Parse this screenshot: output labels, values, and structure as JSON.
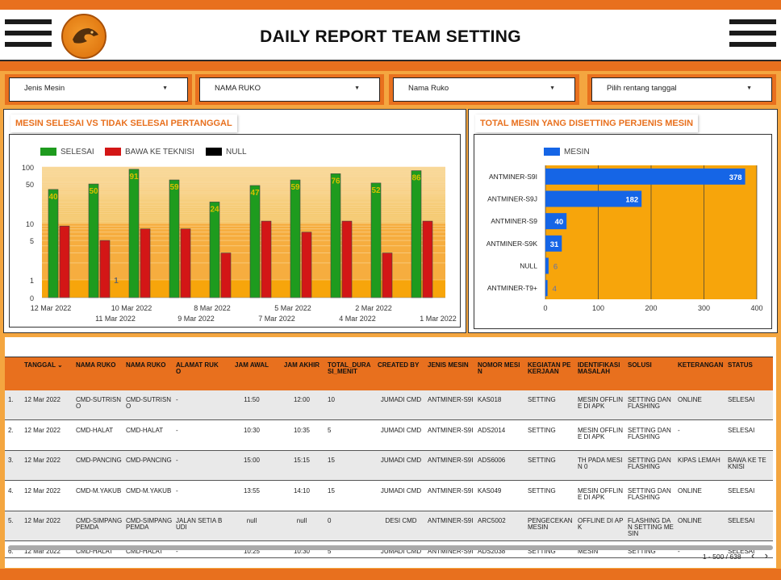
{
  "header": {
    "title": "DAILY REPORT TEAM SETTING"
  },
  "filters": [
    {
      "label": "Jenis Mesin"
    },
    {
      "label": "NAMA RUKO"
    },
    {
      "label": "Nama Ruko"
    },
    {
      "label": "Pilih rentang tanggal"
    }
  ],
  "colors": {
    "accent": "#e8701e",
    "selesai": "#1e9b1e",
    "bawa": "#d31616",
    "null": "#000000",
    "mesin": "#1565e6",
    "chart_bg": "#f7a50b"
  },
  "chart_data": [
    {
      "type": "bar",
      "title": "MESIN SELESAI VS TIDAK SELESAI PERTANGGAL",
      "scale": "log",
      "legend": "top-left",
      "ytick_labels": [
        "100",
        "50",
        "10",
        "5",
        "1",
        "0"
      ],
      "categories": [
        "12 Mar 2022",
        "11 Mar 2022",
        "10 Mar 2022",
        "9 Mar 2022",
        "8 Mar 2022",
        "7 Mar 2022",
        "5 Mar 2022",
        "4 Mar 2022",
        "2 Mar 2022",
        "1 Mar 2022"
      ],
      "series": [
        {
          "name": "SELESAI",
          "values": [
            40,
            50,
            91,
            59,
            24,
            47,
            59,
            76,
            52,
            86
          ]
        },
        {
          "name": "BAWA KE TEKNISI",
          "values": [
            9,
            5,
            8,
            8,
            3,
            11,
            7,
            11,
            3,
            11
          ]
        },
        {
          "name": "NULL",
          "values": [
            0,
            1,
            0,
            0,
            0,
            0,
            0,
            0,
            0,
            0
          ]
        }
      ]
    },
    {
      "type": "bar",
      "orientation": "horizontal",
      "title": "TOTAL MESIN YANG DISETTING PERJENIS MESIN",
      "legend": "top-left",
      "xlim": [
        0,
        400
      ],
      "xtick_labels": [
        "0",
        "100",
        "200",
        "300",
        "400"
      ],
      "categories": [
        "ANTMINER-S9I",
        "ANTMINER-S9J",
        "ANTMINER-S9",
        "ANTMINER-S9K",
        "NULL",
        "ANTMINER-T9+"
      ],
      "series": [
        {
          "name": "MESIN",
          "values": [
            378,
            182,
            40,
            31,
            6,
            4
          ]
        }
      ]
    }
  ],
  "table": {
    "columns": [
      "TANGGAL ⌄",
      "NAMA RUKO",
      "NAMA RUKO",
      "ALAMAT RUKO",
      "JAM AWAL",
      "JAM AKHIR",
      "TOTAL_DURASI_MENIT",
      "CREATED BY",
      "JENIS MESIN",
      "NOMOR MESIN",
      "KEGIATAN PEKERJAAN",
      "IDENTIFIKASI MASALAH",
      "SOLUSI",
      "KETERANGAN",
      "STATUS"
    ],
    "rows": [
      [
        "1.",
        "12 Mar 2022",
        "CMD-SUTRISNO",
        "CMD-SUTRISNO",
        "-",
        "11:50",
        "12:00",
        "10",
        "JUMADI CMD",
        "ANTMINER-S9I",
        "KAS018",
        "SETTING",
        "MESIN OFFLINE DI APK",
        "SETTING DAN FLASHING",
        "ONLINE",
        "SELESAI"
      ],
      [
        "2.",
        "12 Mar 2022",
        "CMD-HALAT",
        "CMD-HALAT",
        "-",
        "10:30",
        "10:35",
        "5",
        "JUMADI CMD",
        "ANTMINER-S9I",
        "ADS2014",
        "SETTING",
        "MESIN OFFLINE DI APK",
        "SETTING DAN FLASHING",
        "-",
        "SELESAI"
      ],
      [
        "3.",
        "12 Mar 2022",
        "CMD-PANCING",
        "CMD-PANCING",
        "-",
        "15:00",
        "15:15",
        "15",
        "JUMADI CMD",
        "ANTMINER-S9I",
        "ADS6006",
        "SETTING",
        "TH PADA MESIN 0",
        "SETTING DAN FLASHING",
        "KIPAS LEMAH",
        "BAWA KE TEKNISI"
      ],
      [
        "4.",
        "12 Mar 2022",
        "CMD-M.YAKUB",
        "CMD-M.YAKUB",
        "-",
        "13:55",
        "14:10",
        "15",
        "JUMADI CMD",
        "ANTMINER-S9I",
        "KAS049",
        "SETTING",
        "MESIN OFFLINE DI APK",
        "SETTING DAN FLASHING",
        "ONLINE",
        "SELESAI"
      ],
      [
        "5.",
        "12 Mar 2022",
        "CMD-SIMPANG PEMDA",
        "CMD-SIMPANG PEMDA",
        "JALAN SETIA BUDI",
        "null",
        "null",
        "0",
        "DESI CMD",
        "ANTMINER-S9I",
        "ARC5002",
        "PENGECEKAN MESIN",
        "OFFLINE DI APK",
        "FLASHING DAN SETTING MESIN",
        "ONLINE",
        "SELESAI"
      ],
      [
        "6.",
        "12 Mar 2022",
        "CMD-HALAT",
        "CMD-HALAT",
        "-",
        "10:25",
        "10:30",
        "5",
        "JUMADI CMD",
        "ANTMINER-S9I",
        "ADS2038",
        "SETTING",
        "MESIN",
        "SETTING",
        "-",
        "SELESAI"
      ]
    ],
    "pagination": "1 - 500 / 638",
    "prev_icon": "‹",
    "next_icon": "›"
  }
}
